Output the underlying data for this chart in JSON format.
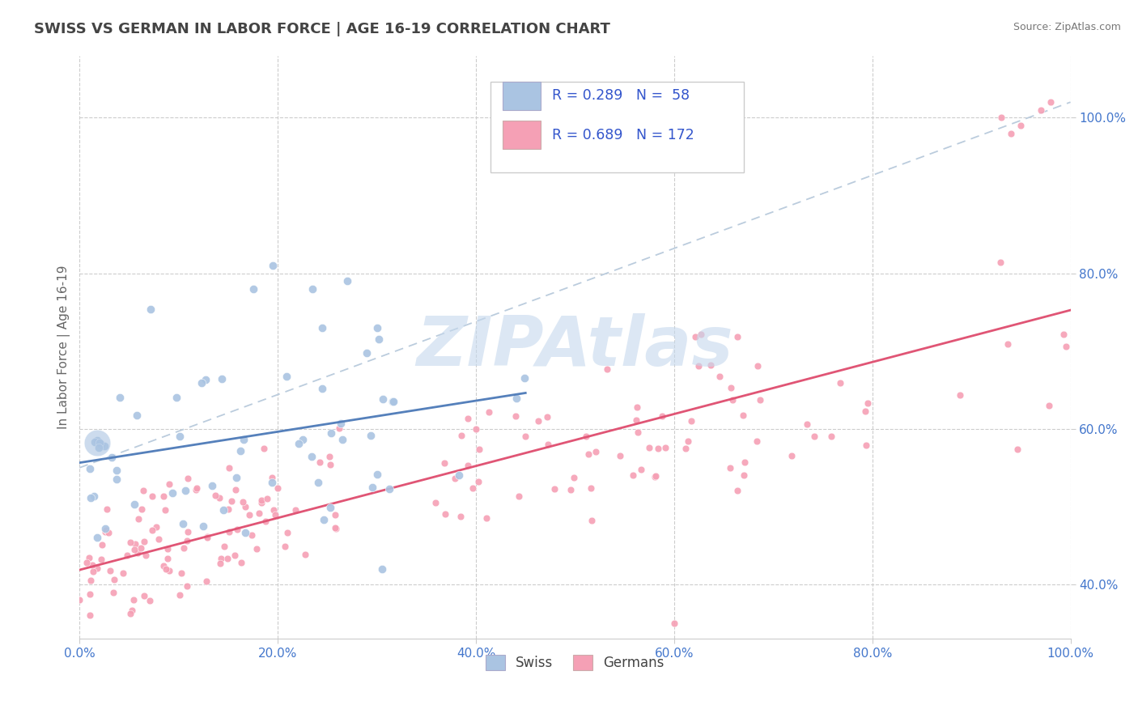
{
  "title": "SWISS VS GERMAN IN LABOR FORCE | AGE 16-19 CORRELATION CHART",
  "source": "Source: ZipAtlas.com",
  "ylabel": "In Labor Force | Age 16-19",
  "xlim": [
    0.0,
    1.0
  ],
  "ylim": [
    0.33,
    1.08
  ],
  "xticks": [
    0.0,
    0.2,
    0.4,
    0.6,
    0.8,
    1.0
  ],
  "xticklabels": [
    "0.0%",
    "20.0%",
    "40.0%",
    "60.0%",
    "80.0%",
    "100.0%"
  ],
  "yticks": [
    0.4,
    0.6,
    0.8,
    1.0
  ],
  "yticklabels": [
    "40.0%",
    "60.0%",
    "80.0%",
    "100.0%"
  ],
  "swiss_color": "#aac4e2",
  "german_color": "#f5a0b5",
  "swiss_line_color": "#5580bb",
  "german_line_color": "#e05575",
  "diag_line_color": "#bbccdd",
  "swiss_R": 0.289,
  "swiss_N": 58,
  "german_R": 0.689,
  "german_N": 172,
  "watermark": "ZIPAtlas",
  "watermark_color": "#c5d8ed",
  "legend_swiss_label": "Swiss",
  "legend_german_label": "Germans",
  "background_color": "#ffffff",
  "grid_color": "#cccccc",
  "title_color": "#444444",
  "tick_color": "#4477cc",
  "legend_value_color": "#3355cc",
  "swiss_seed": 12,
  "german_seed": 77,
  "swiss_marker_size": 55,
  "german_marker_size": 40,
  "swiss_big_dot_size": 550
}
